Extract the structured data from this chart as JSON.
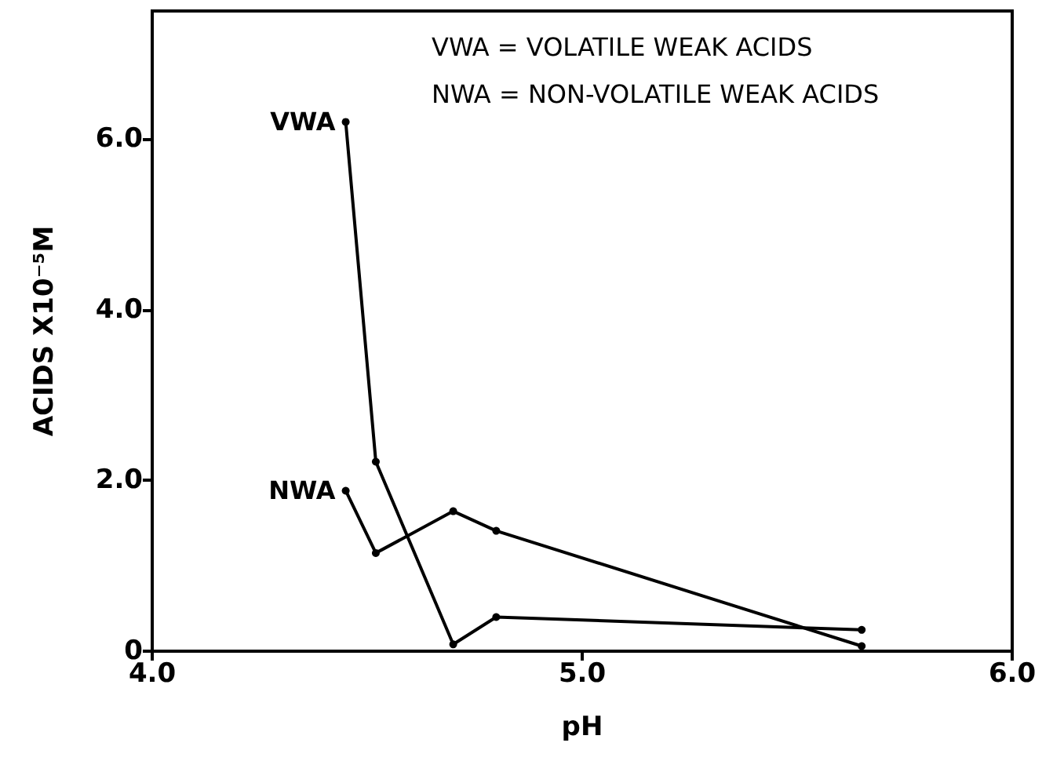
{
  "chart_data": {
    "type": "line",
    "xlabel": "pH",
    "ylabel": "ACIDS X10⁻⁵M",
    "annotations": [
      "VWA = VOLATILE WEAK ACIDS",
      "NWA = NON-VOLATILE WEAK ACIDS"
    ],
    "x": [
      4.45,
      4.52,
      4.7,
      4.8,
      5.65
    ],
    "series": [
      {
        "name": "VWA",
        "color": "#000000",
        "values": [
          6.2,
          2.22,
          0.08,
          0.4,
          0.25
        ]
      },
      {
        "name": "NWA",
        "color": "#000000",
        "values": [
          1.88,
          1.15,
          1.64,
          1.41,
          0.06
        ]
      }
    ],
    "xlim": [
      4,
      6
    ],
    "xticks": [
      {
        "value": 4,
        "label": "4.0"
      },
      {
        "value": 5,
        "label": "5.0"
      },
      {
        "value": 6,
        "label": "6.0"
      }
    ],
    "ylim": [
      0,
      7.5
    ],
    "yticks": [
      0,
      {
        "value": 2,
        "label": "2.0"
      },
      {
        "value": 4,
        "label": "4.0"
      },
      {
        "value": 6,
        "label": "6.0"
      }
    ],
    "grid": false,
    "legend": false,
    "marker": "circle",
    "line_style": "solid"
  }
}
